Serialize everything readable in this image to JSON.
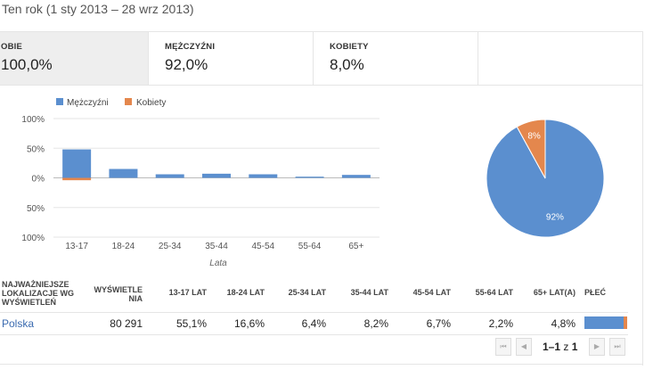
{
  "period": "Ten rok (1 sty 2013 – 28 wrz 2013)",
  "tabs": [
    {
      "label": "OBIE",
      "value": "100,0%"
    },
    {
      "label": "MĘŻCZYŹNI",
      "value": "92,0%"
    },
    {
      "label": "KOBIETY",
      "value": "8,0%"
    }
  ],
  "colors": {
    "men": "#5b8fcf",
    "women": "#e4874d"
  },
  "chart_data": [
    {
      "type": "bar",
      "categories": [
        "13-17",
        "18-24",
        "25-34",
        "35-44",
        "45-54",
        "55-64",
        "65+"
      ],
      "series": [
        {
          "name": "Mężczyźni",
          "values": [
            48,
            15,
            6,
            7,
            6,
            2,
            5
          ]
        },
        {
          "name": "Kobiety",
          "values": [
            -4,
            0,
            0,
            0,
            0,
            0,
            0
          ]
        }
      ],
      "ytick_labels": [
        "100%",
        "50%",
        "0%",
        "50%",
        "100%"
      ],
      "yticks": [
        100,
        50,
        0,
        -50,
        -100
      ],
      "ylim": [
        -100,
        100
      ],
      "xlabel": "Lata",
      "legend": "top-left"
    },
    {
      "type": "pie",
      "categories": [
        "Mężczyźni",
        "Kobiety"
      ],
      "values": [
        92,
        8
      ],
      "labels": [
        "92%",
        "8%"
      ]
    }
  ],
  "table": {
    "headers": {
      "loc": [
        "NAJWAŻNIEJSZE",
        "LOKALIZACJE WG",
        "WYŚWIETLEŃ"
      ],
      "views": [
        "WYŚWIETLE",
        "NIA"
      ],
      "ages": [
        "13-17 LAT",
        "18-24 LAT",
        "25-34 LAT",
        "35-44 LAT",
        "45-54 LAT",
        "55-64 LAT",
        "65+ LAT(A)"
      ],
      "gender": "PŁEĆ"
    },
    "row": {
      "country": "Polska",
      "views": "80 291",
      "ages": [
        "55,1%",
        "16,6%",
        "6,4%",
        "8,2%",
        "6,7%",
        "2,2%",
        "4,8%"
      ],
      "gender_share_men": 0.92
    }
  },
  "pager": {
    "range": "1–1",
    "of": "z",
    "total": "1"
  }
}
